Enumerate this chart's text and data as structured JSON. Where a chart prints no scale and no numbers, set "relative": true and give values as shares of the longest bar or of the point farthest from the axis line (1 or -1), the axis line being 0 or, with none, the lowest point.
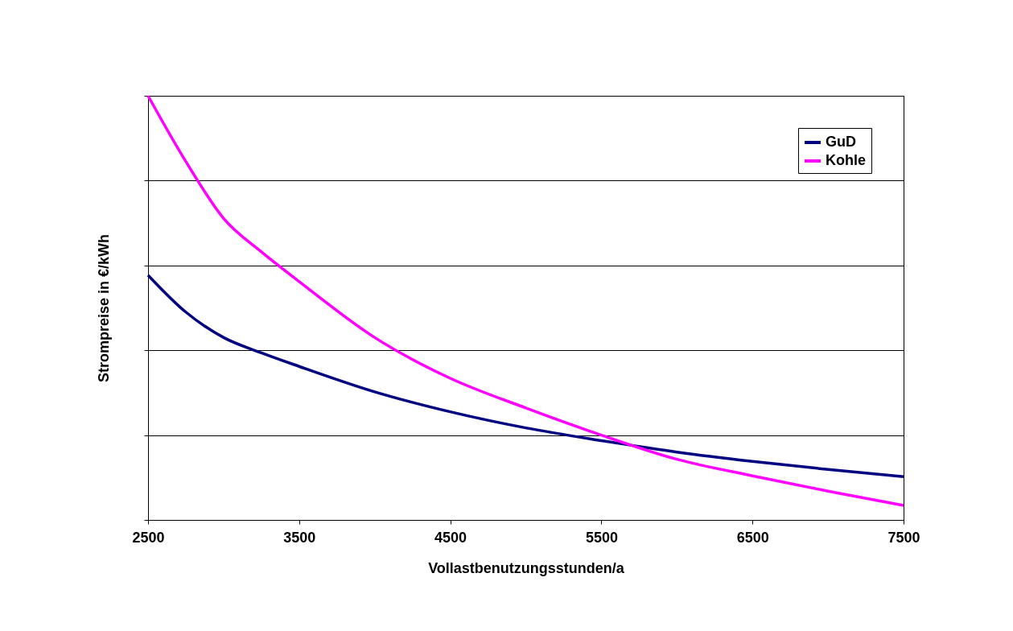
{
  "chart_data": {
    "type": "line",
    "relative": true,
    "xlabel": "Vollastbenutzungsstunden/a",
    "ylabel": "Strompreise in €/kWh",
    "xlim": [
      2500,
      7500
    ],
    "xticks": [
      2500,
      3500,
      4500,
      5500,
      6500,
      7500
    ],
    "grid": "y",
    "legend": "top right",
    "marker": "none",
    "line_style": "solid",
    "x": [
      2500,
      2750,
      3000,
      3250,
      3500,
      4000,
      4500,
      5000,
      5500,
      6000,
      6500,
      7000,
      7500
    ],
    "series": [
      {
        "name": "GuD",
        "color": "#000080",
        "values": [
          0.577,
          0.49,
          0.43,
          0.394,
          0.362,
          0.302,
          0.255,
          0.217,
          0.187,
          0.16,
          0.138,
          0.119,
          0.102
        ]
      },
      {
        "name": "Kohle",
        "color": "#ff00ff",
        "values": [
          1,
          0.845,
          0.711,
          0.632,
          0.562,
          0.43,
          0.334,
          0.264,
          0.2,
          0.143,
          0.104,
          0.068,
          0.034
        ]
      }
    ]
  }
}
